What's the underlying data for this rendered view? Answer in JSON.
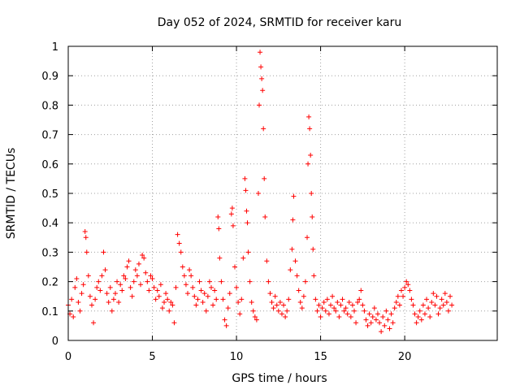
{
  "chart_data": {
    "type": "scatter",
    "title": "Day 052 of 2024, SRMTID for receiver karu",
    "xlabel": "GPS time / hours",
    "ylabel": "SRMTID / TECUs",
    "xlim": [
      0,
      25.5
    ],
    "ylim": [
      0,
      1
    ],
    "x_ticks": [
      0,
      5,
      10,
      15,
      20
    ],
    "x_tick_labels": [
      "0",
      "5",
      "10",
      "15",
      "20"
    ],
    "y_ticks": [
      0,
      0.1,
      0.2,
      0.3,
      0.4,
      0.5,
      0.6,
      0.7,
      0.8,
      0.9,
      1
    ],
    "y_tick_labels": [
      "0",
      "0.1",
      "0.2",
      "0.3",
      "0.4",
      "0.5",
      "0.6",
      "0.7",
      "0.8",
      "0.9",
      "1"
    ],
    "grid": true,
    "marker": "+",
    "marker_color": "#ff0000",
    "series": [
      {
        "name": "SRMTID",
        "points": [
          [
            0.0,
            0.12
          ],
          [
            0.1,
            0.09
          ],
          [
            0.2,
            0.14
          ],
          [
            0.3,
            0.08
          ],
          [
            0.4,
            0.18
          ],
          [
            0.5,
            0.21
          ],
          [
            0.6,
            0.13
          ],
          [
            0.7,
            0.1
          ],
          [
            0.8,
            0.16
          ],
          [
            0.9,
            0.19
          ],
          [
            1.0,
            0.37
          ],
          [
            1.05,
            0.35
          ],
          [
            1.1,
            0.3
          ],
          [
            1.2,
            0.22
          ],
          [
            1.3,
            0.15
          ],
          [
            1.4,
            0.12
          ],
          [
            1.5,
            0.06
          ],
          [
            1.6,
            0.14
          ],
          [
            1.7,
            0.18
          ],
          [
            1.8,
            0.2
          ],
          [
            1.9,
            0.17
          ],
          [
            2.0,
            0.22
          ],
          [
            2.1,
            0.3
          ],
          [
            2.2,
            0.24
          ],
          [
            2.3,
            0.16
          ],
          [
            2.4,
            0.13
          ],
          [
            2.5,
            0.18
          ],
          [
            2.6,
            0.1
          ],
          [
            2.7,
            0.14
          ],
          [
            2.8,
            0.16
          ],
          [
            2.9,
            0.2
          ],
          [
            3.0,
            0.13
          ],
          [
            3.1,
            0.19
          ],
          [
            3.2,
            0.17
          ],
          [
            3.3,
            0.22
          ],
          [
            3.4,
            0.21
          ],
          [
            3.5,
            0.25
          ],
          [
            3.6,
            0.27
          ],
          [
            3.7,
            0.18
          ],
          [
            3.8,
            0.15
          ],
          [
            3.9,
            0.2
          ],
          [
            4.0,
            0.24
          ],
          [
            4.1,
            0.22
          ],
          [
            4.2,
            0.26
          ],
          [
            4.3,
            0.19
          ],
          [
            4.4,
            0.29
          ],
          [
            4.5,
            0.28
          ],
          [
            4.6,
            0.23
          ],
          [
            4.7,
            0.2
          ],
          [
            4.8,
            0.17
          ],
          [
            4.9,
            0.22
          ],
          [
            5.0,
            0.21
          ],
          [
            5.1,
            0.18
          ],
          [
            5.2,
            0.14
          ],
          [
            5.3,
            0.17
          ],
          [
            5.4,
            0.15
          ],
          [
            5.5,
            0.19
          ],
          [
            5.6,
            0.11
          ],
          [
            5.7,
            0.13
          ],
          [
            5.8,
            0.16
          ],
          [
            5.9,
            0.14
          ],
          [
            6.0,
            0.1
          ],
          [
            6.1,
            0.13
          ],
          [
            6.2,
            0.12
          ],
          [
            6.3,
            0.06
          ],
          [
            6.4,
            0.18
          ],
          [
            6.5,
            0.36
          ],
          [
            6.6,
            0.33
          ],
          [
            6.7,
            0.3
          ],
          [
            6.8,
            0.25
          ],
          [
            6.9,
            0.22
          ],
          [
            7.0,
            0.19
          ],
          [
            7.1,
            0.16
          ],
          [
            7.2,
            0.24
          ],
          [
            7.3,
            0.22
          ],
          [
            7.4,
            0.18
          ],
          [
            7.5,
            0.15
          ],
          [
            7.6,
            0.12
          ],
          [
            7.7,
            0.14
          ],
          [
            7.8,
            0.2
          ],
          [
            7.9,
            0.17
          ],
          [
            8.0,
            0.13
          ],
          [
            8.1,
            0.16
          ],
          [
            8.2,
            0.1
          ],
          [
            8.3,
            0.15
          ],
          [
            8.4,
            0.2
          ],
          [
            8.5,
            0.18
          ],
          [
            8.6,
            0.12
          ],
          [
            8.7,
            0.17
          ],
          [
            8.8,
            0.14
          ],
          [
            8.9,
            0.42
          ],
          [
            8.95,
            0.38
          ],
          [
            9.0,
            0.28
          ],
          [
            9.1,
            0.2
          ],
          [
            9.2,
            0.14
          ],
          [
            9.3,
            0.07
          ],
          [
            9.4,
            0.05
          ],
          [
            9.5,
            0.11
          ],
          [
            9.6,
            0.16
          ],
          [
            9.7,
            0.43
          ],
          [
            9.75,
            0.45
          ],
          [
            9.8,
            0.39
          ],
          [
            9.9,
            0.25
          ],
          [
            10.0,
            0.18
          ],
          [
            10.1,
            0.13
          ],
          [
            10.2,
            0.09
          ],
          [
            10.3,
            0.14
          ],
          [
            10.4,
            0.28
          ],
          [
            10.5,
            0.55
          ],
          [
            10.55,
            0.51
          ],
          [
            10.6,
            0.44
          ],
          [
            10.65,
            0.4
          ],
          [
            10.7,
            0.3
          ],
          [
            10.8,
            0.2
          ],
          [
            10.9,
            0.13
          ],
          [
            11.0,
            0.1
          ],
          [
            11.1,
            0.08
          ],
          [
            11.2,
            0.07
          ],
          [
            11.3,
            0.5
          ],
          [
            11.35,
            0.8
          ],
          [
            11.4,
            0.98
          ],
          [
            11.45,
            0.93
          ],
          [
            11.5,
            0.89
          ],
          [
            11.55,
            0.85
          ],
          [
            11.6,
            0.72
          ],
          [
            11.65,
            0.55
          ],
          [
            11.7,
            0.42
          ],
          [
            11.8,
            0.27
          ],
          [
            11.9,
            0.2
          ],
          [
            12.0,
            0.16
          ],
          [
            12.1,
            0.13
          ],
          [
            12.2,
            0.11
          ],
          [
            12.3,
            0.15
          ],
          [
            12.4,
            0.12
          ],
          [
            12.5,
            0.1
          ],
          [
            12.6,
            0.13
          ],
          [
            12.7,
            0.09
          ],
          [
            12.8,
            0.12
          ],
          [
            12.9,
            0.08
          ],
          [
            13.0,
            0.1
          ],
          [
            13.1,
            0.14
          ],
          [
            13.2,
            0.24
          ],
          [
            13.3,
            0.31
          ],
          [
            13.35,
            0.41
          ],
          [
            13.4,
            0.49
          ],
          [
            13.5,
            0.27
          ],
          [
            13.6,
            0.22
          ],
          [
            13.7,
            0.17
          ],
          [
            13.8,
            0.13
          ],
          [
            13.9,
            0.11
          ],
          [
            14.0,
            0.15
          ],
          [
            14.1,
            0.2
          ],
          [
            14.2,
            0.35
          ],
          [
            14.25,
            0.6
          ],
          [
            14.3,
            0.76
          ],
          [
            14.35,
            0.72
          ],
          [
            14.4,
            0.63
          ],
          [
            14.45,
            0.5
          ],
          [
            14.5,
            0.42
          ],
          [
            14.55,
            0.31
          ],
          [
            14.6,
            0.22
          ],
          [
            14.7,
            0.14
          ],
          [
            14.8,
            0.1
          ],
          [
            14.9,
            0.12
          ],
          [
            15.0,
            0.08
          ],
          [
            15.1,
            0.11
          ],
          [
            15.2,
            0.13
          ],
          [
            15.3,
            0.1
          ],
          [
            15.4,
            0.14
          ],
          [
            15.5,
            0.09
          ],
          [
            15.6,
            0.12
          ],
          [
            15.7,
            0.15
          ],
          [
            15.8,
            0.11
          ],
          [
            15.9,
            0.1
          ],
          [
            16.0,
            0.13
          ],
          [
            16.1,
            0.08
          ],
          [
            16.2,
            0.12
          ],
          [
            16.3,
            0.14
          ],
          [
            16.4,
            0.1
          ],
          [
            16.5,
            0.11
          ],
          [
            16.6,
            0.09
          ],
          [
            16.7,
            0.13
          ],
          [
            16.8,
            0.08
          ],
          [
            16.9,
            0.12
          ],
          [
            17.0,
            0.1
          ],
          [
            17.1,
            0.06
          ],
          [
            17.2,
            0.13
          ],
          [
            17.3,
            0.14
          ],
          [
            17.4,
            0.17
          ],
          [
            17.5,
            0.12
          ],
          [
            17.6,
            0.1
          ],
          [
            17.7,
            0.07
          ],
          [
            17.8,
            0.05
          ],
          [
            17.9,
            0.09
          ],
          [
            18.0,
            0.06
          ],
          [
            18.1,
            0.08
          ],
          [
            18.2,
            0.11
          ],
          [
            18.3,
            0.07
          ],
          [
            18.4,
            0.09
          ],
          [
            18.5,
            0.06
          ],
          [
            18.6,
            0.03
          ],
          [
            18.7,
            0.08
          ],
          [
            18.8,
            0.05
          ],
          [
            18.9,
            0.1
          ],
          [
            19.0,
            0.07
          ],
          [
            19.1,
            0.04
          ],
          [
            19.2,
            0.09
          ],
          [
            19.3,
            0.06
          ],
          [
            19.4,
            0.11
          ],
          [
            19.5,
            0.13
          ],
          [
            19.6,
            0.15
          ],
          [
            19.7,
            0.12
          ],
          [
            19.8,
            0.17
          ],
          [
            19.9,
            0.15
          ],
          [
            20.0,
            0.18
          ],
          [
            20.1,
            0.2
          ],
          [
            20.2,
            0.19
          ],
          [
            20.3,
            0.17
          ],
          [
            20.4,
            0.14
          ],
          [
            20.5,
            0.12
          ],
          [
            20.6,
            0.09
          ],
          [
            20.7,
            0.06
          ],
          [
            20.8,
            0.08
          ],
          [
            20.9,
            0.1
          ],
          [
            21.0,
            0.07
          ],
          [
            21.1,
            0.12
          ],
          [
            21.2,
            0.09
          ],
          [
            21.3,
            0.14
          ],
          [
            21.4,
            0.11
          ],
          [
            21.5,
            0.08
          ],
          [
            21.6,
            0.13
          ],
          [
            21.7,
            0.16
          ],
          [
            21.8,
            0.12
          ],
          [
            21.9,
            0.15
          ],
          [
            22.0,
            0.09
          ],
          [
            22.1,
            0.11
          ],
          [
            22.2,
            0.14
          ],
          [
            22.3,
            0.12
          ],
          [
            22.4,
            0.16
          ],
          [
            22.5,
            0.13
          ],
          [
            22.6,
            0.1
          ],
          [
            22.7,
            0.15
          ],
          [
            22.8,
            0.12
          ]
        ]
      }
    ]
  }
}
